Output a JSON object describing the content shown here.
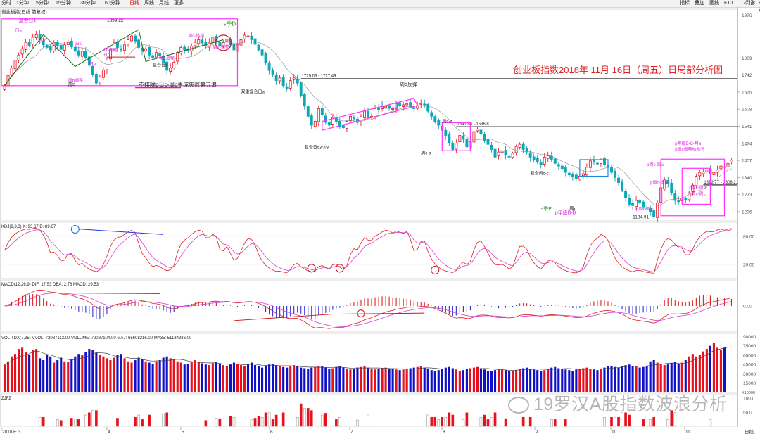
{
  "toolbar": {
    "left_tabs": [
      "分时",
      "1分钟",
      "5分钟",
      "15分钟",
      "30分钟",
      "60分钟",
      "日线",
      "周线",
      "月线",
      "更多"
    ],
    "active_tab": "日线",
    "right_tabs": [
      "指标",
      "叠加",
      "画线",
      "F10",
      "标记",
      "+自选",
      "返回"
    ]
  },
  "price_panel": {
    "legend": "创业板指(日线 前复权)",
    "title": "创业板指数2018年 11月 16日（周五）日局部分析图",
    "title_color": "#e02020",
    "axis_ticks": [
      "1976",
      "1809",
      "1742",
      "1675",
      "1608",
      "1541",
      "1474",
      "1407",
      "1340",
      "1273",
      "1206"
    ],
    "hlines": [
      {
        "label": "1729.06 - 1727.49",
        "value": 1728
      },
      {
        "label": "1541.86 - 1536.8",
        "value": 1540
      },
      {
        "label": "1312.77 - 1308.21",
        "value": 1311
      }
    ],
    "high_label": "1899.22",
    "low_label": "1184.91",
    "annotations": [
      {
        "text": "复合日1",
        "color": "#e020e0"
      },
      {
        "text": "周b",
        "color": "#222"
      },
      {
        "text": "日a",
        "color": "#e020e0"
      },
      {
        "text": "日b",
        "color": "#e020e0"
      },
      {
        "text": "日c",
        "color": "#e020e0"
      },
      {
        "text": "日e",
        "color": "#e020e0"
      },
      {
        "text": "日d",
        "color": "#e020e0"
      },
      {
        "text": "周b调整",
        "color": "#e020e0"
      },
      {
        "text": "日e调整",
        "color": "#e020e0"
      },
      {
        "text": "周c调整",
        "color": "#e020e0"
      },
      {
        "text": "复合日b",
        "color": "#222"
      },
      {
        "text": "周c-结构",
        "color": "#e020e0"
      },
      {
        "text": "周e-调整",
        "color": "#e020e0"
      },
      {
        "text": "s季D",
        "color": "#209020"
      },
      {
        "text": "不排除p日c-周c主成失败第五浪",
        "color": "#222"
      },
      {
        "text": "双重复合日a",
        "color": "#222"
      },
      {
        "text": "复合日c3/3/3",
        "color": "#222"
      },
      {
        "text": "周d反弹",
        "color": "#222"
      },
      {
        "text": "周c-a",
        "color": "#222"
      },
      {
        "text": "周c-b",
        "color": "#222"
      },
      {
        "text": "复合周c-c7",
        "color": "#222"
      },
      {
        "text": "s季E",
        "color": "#209020"
      },
      {
        "text": "周c",
        "color": "#222"
      },
      {
        "text": "p年级B-B",
        "color": "#e020e0"
      },
      {
        "text": "p年级B-C-月a",
        "color": "#e020e0"
      },
      {
        "text": "p周c调整结构五",
        "color": "#e020e0"
      },
      {
        "text": "p周c-周a",
        "color": "#e020e0"
      },
      {
        "text": "p周c-周b",
        "color": "#e020e0"
      },
      {
        "text": "p周c-周c",
        "color": "#e020e0"
      },
      {
        "text": "p周c-周d",
        "color": "#e020e0"
      },
      {
        "text": "p周c-周e",
        "color": "#e020e0"
      }
    ]
  },
  "kdj_panel": {
    "legend": "KDJ(9,3,3) K: 93.67  D: 89.67",
    "axis_ticks": [
      "80.00",
      "20.00"
    ]
  },
  "macd_panel": {
    "legend": "MACD(12,26,9) DIF: 17.53  DEA: 2.76  MACD: 29.53",
    "axis_ticks": [
      "0.00"
    ]
  },
  "vol_panel": {
    "legend": "VOL-TDX(7,35) VVOL: 72087112.00  VOLUME: 72087104.00  MA7: 65608216.00  MA35: 51134336.00",
    "axis_ticks": [
      "90000",
      "75000",
      "60000",
      "45000",
      "30000",
      "15000"
    ],
    "unit": "X10000"
  },
  "zjfz_panel": {
    "legend": "ZJFZ",
    "axis_ticks": [
      "100.0",
      "50.0"
    ]
  },
  "date_axis": [
    "2018年 3",
    "4",
    "5",
    "6",
    "7",
    "8",
    "9",
    "10",
    "11"
  ],
  "date_axis_right": "日线",
  "watermark": "19罗汉A股指数波浪分析",
  "colors": {
    "up": "#e8101a",
    "down": "#1010c8",
    "macd_down": "#3030d0",
    "highlight": "#ff33ff"
  },
  "chart_data": {
    "type": "candlestick",
    "title": "创业板指数2018年 11月 16日（周五）日局部分析图",
    "ylim": [
      1170,
      2000
    ],
    "closes": [
      1700,
      1740,
      1770,
      1800,
      1820,
      1845,
      1870,
      1858,
      1890,
      1900,
      1880,
      1860,
      1850,
      1840,
      1870,
      1855,
      1842,
      1860,
      1870,
      1852,
      1835,
      1820,
      1835,
      1810,
      1780,
      1745,
      1710,
      1735,
      1762,
      1800,
      1845,
      1868,
      1850,
      1840,
      1860,
      1880,
      1895,
      1875,
      1850,
      1835,
      1845,
      1820,
      1810,
      1830,
      1818,
      1790,
      1760,
      1770,
      1792,
      1830,
      1850,
      1840,
      1838,
      1855,
      1870,
      1880,
      1868,
      1855,
      1870,
      1890,
      1872,
      1855,
      1870,
      1882,
      1860,
      1840,
      1860,
      1880,
      1898,
      1895,
      1880,
      1862,
      1840,
      1820,
      1790,
      1760,
      1745,
      1720,
      1730,
      1700,
      1690,
      1720,
      1730,
      1710,
      1660,
      1620,
      1580,
      1545,
      1560,
      1610,
      1585,
      1556,
      1545,
      1575,
      1560,
      1540,
      1535,
      1560,
      1580,
      1570,
      1556,
      1578,
      1600,
      1575,
      1580,
      1610,
      1605,
      1618,
      1620,
      1615,
      1610,
      1630,
      1622,
      1625,
      1630,
      1618,
      1610,
      1622,
      1630,
      1625,
      1600,
      1580,
      1560,
      1545,
      1525,
      1505,
      1475,
      1450,
      1475,
      1505,
      1490,
      1460,
      1480,
      1520,
      1530,
      1510,
      1485,
      1470,
      1450,
      1420,
      1440,
      1445,
      1428,
      1420,
      1435,
      1462,
      1470,
      1450,
      1440,
      1420,
      1410,
      1400,
      1390,
      1420,
      1425,
      1410,
      1395,
      1385,
      1375,
      1360,
      1350,
      1345,
      1335,
      1345,
      1355,
      1380,
      1405,
      1400,
      1395,
      1410,
      1390,
      1380,
      1360,
      1340,
      1320,
      1290,
      1260,
      1235,
      1230,
      1250,
      1240,
      1225,
      1220,
      1205,
      1185,
      1240,
      1300,
      1330,
      1315,
      1280,
      1250,
      1245,
      1260,
      1252,
      1280,
      1310,
      1345,
      1360,
      1362,
      1370,
      1355,
      1360,
      1370,
      1385,
      1380,
      1395,
      1408
    ],
    "volumes": [
      45000,
      50000,
      58000,
      62000,
      70000,
      72000,
      65000,
      60000,
      68000,
      70000,
      55000,
      52000,
      60000,
      58000,
      48000,
      52000,
      56000,
      50000,
      49000,
      54000,
      58000,
      62000,
      60000,
      65000,
      70000,
      68000,
      64000,
      60000,
      58000,
      55000,
      52000,
      56000,
      60000,
      62000,
      55000,
      50000,
      48000,
      52000,
      56000,
      54000,
      50000,
      48000,
      46000,
      50000,
      52000,
      56000,
      58000,
      55000,
      53000,
      50000,
      48000,
      45000,
      46000,
      50000,
      52000,
      49000,
      47000,
      45000,
      44000,
      47000,
      49000,
      46000,
      44000,
      43000,
      45000,
      48000,
      46000,
      44000,
      42000,
      46000,
      48000,
      44000,
      42000,
      40000,
      43000,
      45000,
      46000,
      44000,
      42000,
      41000,
      40000,
      42000,
      44000,
      43000,
      40000,
      39000,
      38000,
      40000,
      41000,
      43000,
      42000,
      40000,
      38000,
      39000,
      41000,
      42000,
      40000,
      38000,
      37000,
      38000,
      40000,
      41000,
      42000,
      40000,
      38000,
      37000,
      38000,
      39000,
      40000,
      39000,
      38000,
      37000,
      36000,
      37000,
      38000,
      39000,
      40000,
      41000,
      42000,
      40000,
      38000,
      36000,
      35000,
      36000,
      38000,
      40000,
      41000,
      39000,
      37000,
      35000,
      36000,
      38000,
      39000,
      40000,
      41000,
      39000,
      37000,
      35000,
      34000,
      36000,
      37000,
      38000,
      36000,
      35000,
      34000,
      36000,
      38000,
      39000,
      40000,
      38000,
      37000,
      36000,
      35000,
      36000,
      38000,
      40000,
      41000,
      39000,
      38000,
      37000,
      36000,
      35000,
      37000,
      38000,
      39000,
      40000,
      38000,
      37000,
      36000,
      38000,
      40000,
      42000,
      43000,
      41000,
      40000,
      42000,
      44000,
      45000,
      43000,
      42000,
      40000,
      41000,
      43000,
      50000,
      52000,
      48000,
      46000,
      44000,
      45000,
      47000,
      49000,
      46000,
      48000,
      52000,
      58000,
      62000,
      58000,
      60000,
      66000,
      70000,
      75000,
      80000,
      72000,
      68000,
      72087
    ]
  }
}
